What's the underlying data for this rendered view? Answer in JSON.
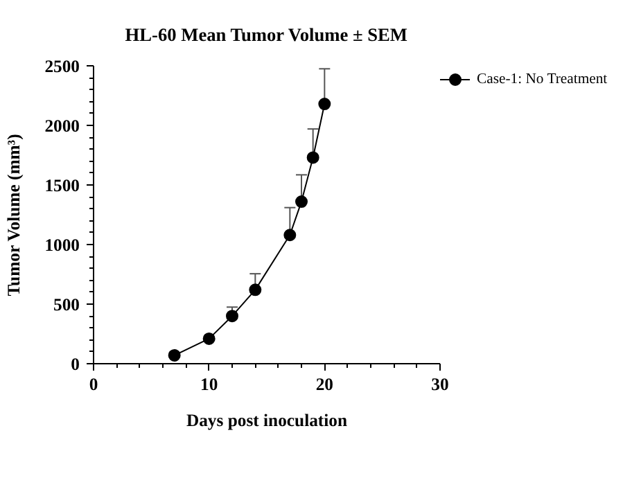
{
  "chart_data": {
    "type": "line",
    "title": "HL-60 Mean Tumor Volume ± SEM",
    "xlabel": "Days post inoculation",
    "ylabel": "Tumor Volume (mm³)",
    "x": [
      7,
      10,
      12,
      14,
      17,
      18,
      19,
      20
    ],
    "series": [
      {
        "name": "Case-1: No Treatment",
        "color": "#000000",
        "values": [
          70,
          210,
          400,
          620,
          1080,
          1360,
          1730,
          2180
        ],
        "errors": [
          null,
          null,
          [
            400,
            475
          ],
          [
            620,
            755
          ],
          [
            1080,
            1310
          ],
          [
            1360,
            1585
          ],
          [
            1730,
            1970
          ],
          [
            2180,
            2475
          ]
        ]
      }
    ],
    "xlim": [
      0,
      30
    ],
    "xticks": [
      0,
      10,
      20,
      30
    ],
    "ylim": [
      0,
      2500
    ],
    "yticks": [
      0,
      500,
      1000,
      1500,
      2000,
      2500
    ],
    "grid": false,
    "legend": "right",
    "marker": "circle",
    "line_style": "solid"
  }
}
